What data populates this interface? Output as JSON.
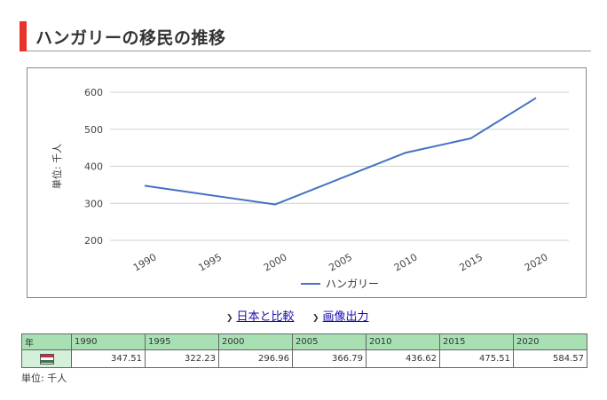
{
  "page": {
    "title": "ハンガリーの移民の推移",
    "links": {
      "compare": "日本と比較",
      "image": "画像出力"
    },
    "unit_note": "単位: 千人"
  },
  "flag": {
    "name": "hungary-flag",
    "colors": [
      "#cd2a3e",
      "#ffffff",
      "#436f4d"
    ]
  },
  "colors": {
    "accent": "#e8322a",
    "line": "#4472c4",
    "table_header": "#a8e0b4",
    "table_row_head": "#d4f0da"
  },
  "chart_data": {
    "type": "line",
    "x": [
      1990,
      1995,
      2000,
      2005,
      2010,
      2015,
      2020
    ],
    "series": [
      {
        "name": "ハンガリー",
        "values": [
          347.51,
          322.23,
          296.96,
          366.79,
          436.62,
          475.51,
          584.57
        ],
        "color": "#4472c4"
      }
    ],
    "ylabel": "単位: 千人",
    "ylim": [
      200,
      600
    ],
    "yticks": [
      200,
      300,
      400,
      500,
      600
    ],
    "xticks": [
      "1990",
      "1995",
      "2000",
      "2005",
      "2010",
      "2015",
      "2020"
    ],
    "grid": true,
    "legend": "bottom"
  },
  "table": {
    "year_header": "年",
    "years": [
      "1990",
      "1995",
      "2000",
      "2005",
      "2010",
      "2015",
      "2020"
    ],
    "values": [
      "347.51",
      "322.23",
      "296.96",
      "366.79",
      "436.62",
      "475.51",
      "584.57"
    ]
  }
}
